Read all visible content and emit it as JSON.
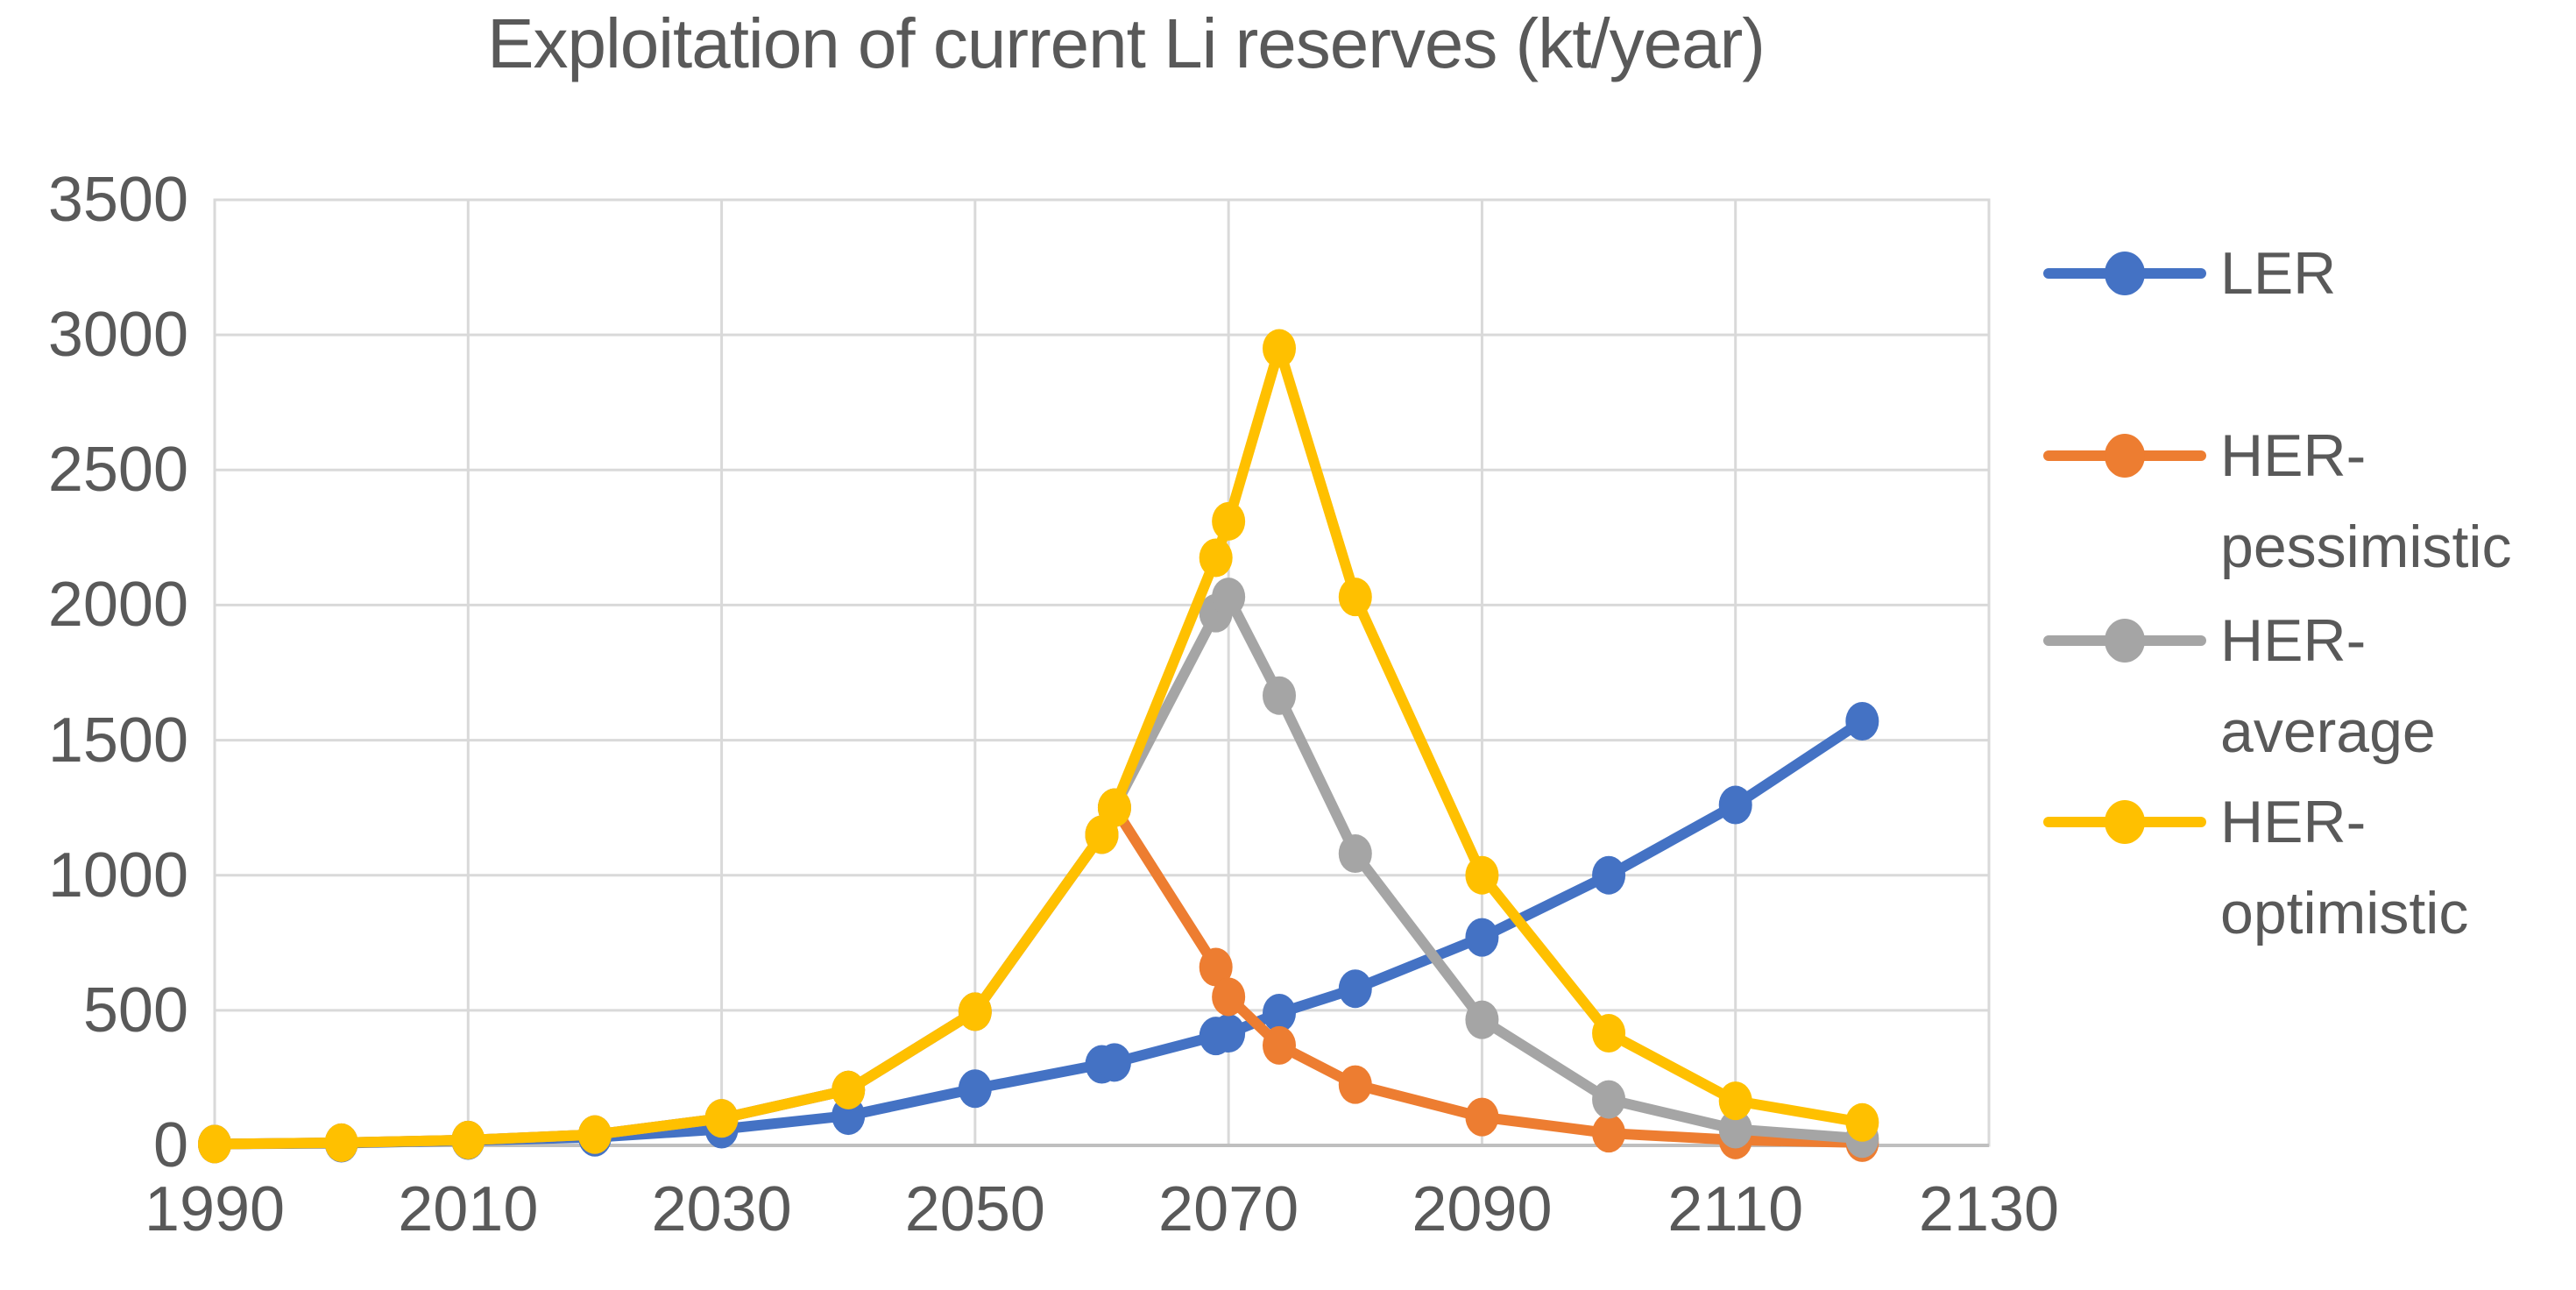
{
  "title": "Exploitation of current Li reserves (kt/year)",
  "chart_data": {
    "type": "line",
    "title": "Exploitation of current Li reserves (kt/year)",
    "xlabel": "",
    "ylabel": "",
    "x": [
      1990,
      2000,
      2010,
      2020,
      2030,
      2040,
      2050,
      2060,
      2061,
      2069,
      2070,
      2074,
      2080,
      2090,
      2100,
      2110,
      2120
    ],
    "series": [
      {
        "name": "LER",
        "color": "#4472C4",
        "values": [
          5,
          8,
          18,
          30,
          60,
          110,
          210,
          300,
          307,
          405,
          415,
          490,
          580,
          770,
          1000,
          1260,
          1570
        ]
      },
      {
        "name": "HER-pessimistic",
        "color": "#ED7D31",
        "values": [
          5,
          10,
          20,
          40,
          100,
          205,
          495,
          1150,
          1250,
          660,
          550,
          370,
          225,
          105,
          45,
          20,
          10
        ]
      },
      {
        "name": "HER-average",
        "color": "#A5A5A5",
        "values": [
          5,
          10,
          20,
          40,
          100,
          205,
          495,
          1150,
          1250,
          1970,
          2030,
          1665,
          1080,
          465,
          170,
          60,
          25
        ]
      },
      {
        "name": "HER-optimistic",
        "color": "#FFC000",
        "values": [
          5,
          10,
          20,
          40,
          100,
          205,
          495,
          1150,
          1250,
          2175,
          2310,
          2950,
          2030,
          1000,
          415,
          165,
          85
        ]
      }
    ],
    "x_ticks": [
      "1990",
      "2010",
      "2030",
      "2050",
      "2070",
      "2090",
      "2110",
      "2130"
    ],
    "y_ticks": [
      "0",
      "500",
      "1000",
      "1500",
      "2000",
      "2500",
      "3000",
      "3500"
    ],
    "xlim": [
      1990,
      2130
    ],
    "ylim": [
      0,
      3500
    ],
    "grid": true,
    "legend_position": "right",
    "colors": {
      "grid": "#D9D9D9",
      "axis": "#BFBFBF",
      "text": "#595959",
      "background": "#FFFFFF"
    }
  }
}
